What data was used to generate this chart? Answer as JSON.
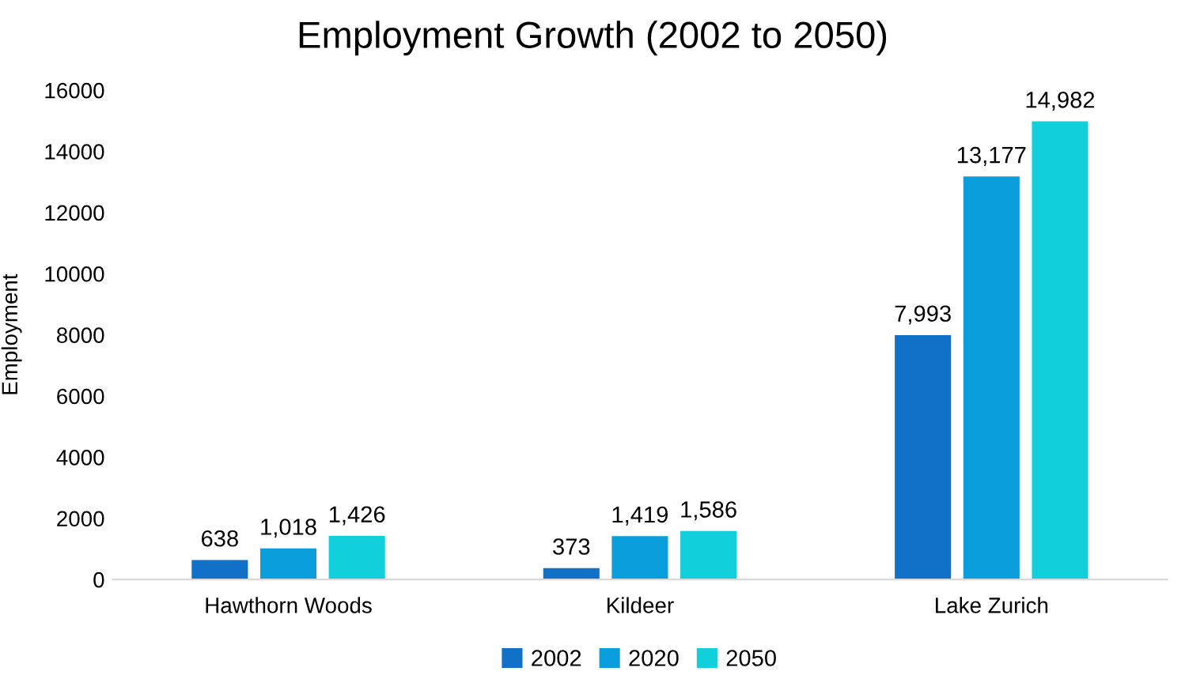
{
  "chart_data": {
    "type": "bar",
    "title": "Employment Growth (2002 to 2050)",
    "ylabel": "Employment",
    "categories": [
      "Hawthorn Woods",
      "Kildeer",
      "Lake Zurich"
    ],
    "series": [
      {
        "name": "2002",
        "color": "#1170c8",
        "values": [
          638,
          373,
          7993
        ],
        "value_labels": [
          "638",
          "373",
          "7,993"
        ]
      },
      {
        "name": "2020",
        "color": "#0a9fdc",
        "values": [
          1018,
          1419,
          13177
        ],
        "value_labels": [
          "1,018",
          "1,419",
          "13,177"
        ]
      },
      {
        "name": "2050",
        "color": "#12cfdc",
        "values": [
          1426,
          1586,
          14982
        ],
        "value_labels": [
          "1,426",
          "1,586",
          "14,982"
        ]
      }
    ],
    "ylim": [
      0,
      16000
    ],
    "yticks": [
      0,
      2000,
      4000,
      6000,
      8000,
      10000,
      12000,
      14000,
      16000
    ],
    "grid": false,
    "legend": "bottom"
  }
}
